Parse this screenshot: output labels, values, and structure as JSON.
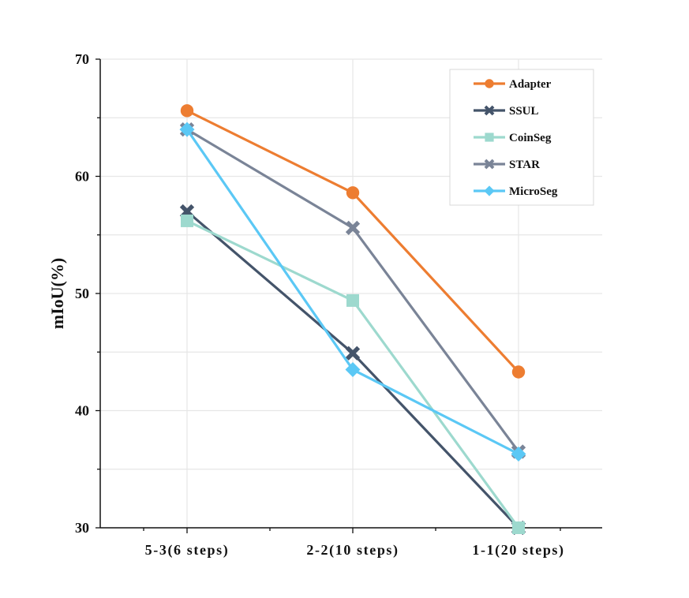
{
  "chart_data": {
    "type": "line",
    "title": "",
    "xlabel": "",
    "ylabel": "mIoU(%)",
    "ylim": [
      30,
      70
    ],
    "yticks": [
      30,
      40,
      50,
      60,
      70
    ],
    "grid": true,
    "legend_position": "top-right",
    "categories": [
      "5-3(6 steps)",
      "2-2(10 steps)",
      "1-1(20 steps)"
    ],
    "series": [
      {
        "name": "Adapter",
        "values": [
          65.6,
          58.6,
          43.3
        ],
        "color": "#ED7D31",
        "marker": "circle"
      },
      {
        "name": "SSUL",
        "values": [
          57.0,
          44.9,
          30.0
        ],
        "color": "#44546A",
        "marker": "x"
      },
      {
        "name": "CoinSeg",
        "values": [
          56.2,
          49.4,
          30.0
        ],
        "color": "#9DD9CE",
        "marker": "square"
      },
      {
        "name": "STAR",
        "values": [
          64.0,
          55.6,
          36.5
        ],
        "color": "#7A8497",
        "marker": "x"
      },
      {
        "name": "MicroSeg",
        "values": [
          64.0,
          43.5,
          36.3
        ],
        "color": "#5BC8F5",
        "marker": "diamond"
      }
    ]
  }
}
